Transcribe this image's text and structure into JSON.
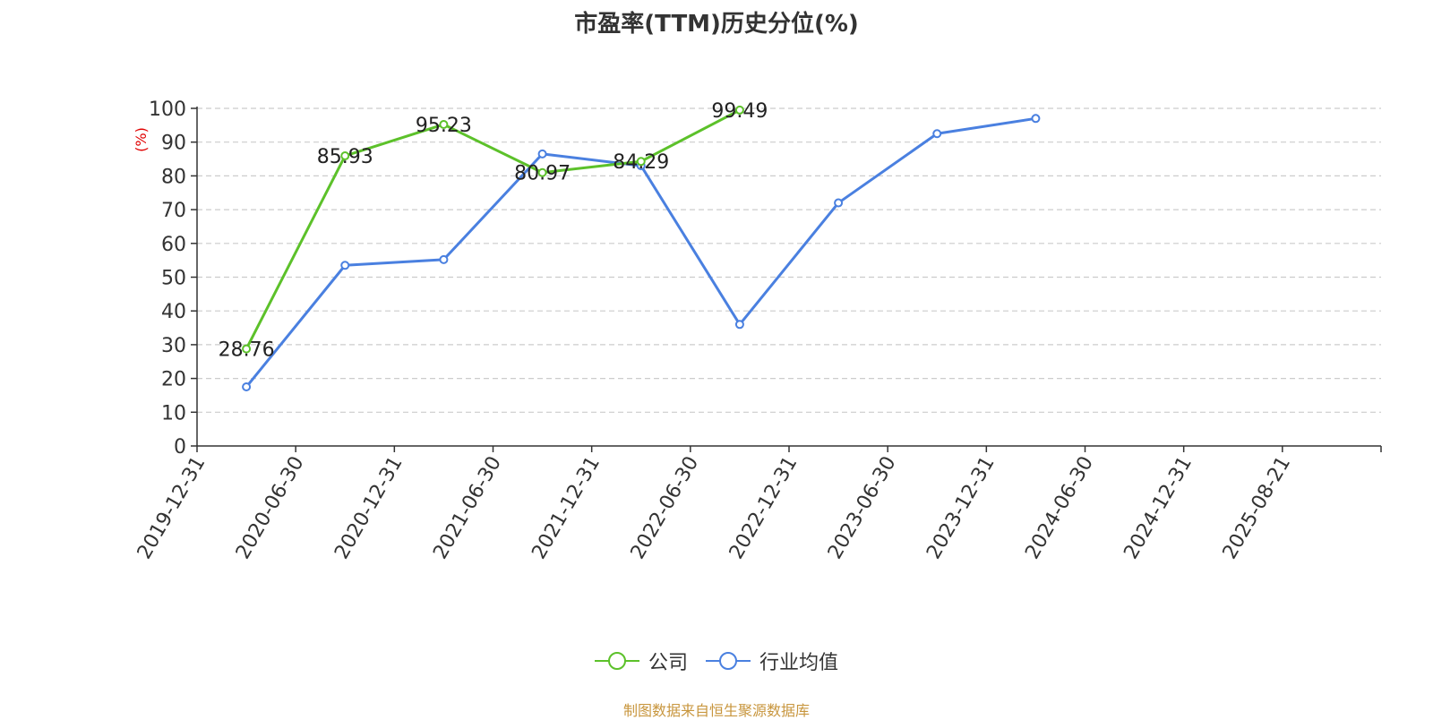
{
  "title": "市盈率(TTM)历史分位(%)",
  "source": "制图数据来自恒生聚源数据库",
  "colors": {
    "company": "#5cc12a",
    "industry": "#4a80e0",
    "grid": "#cccccc",
    "axis": "#333333",
    "unit": "#e00000"
  },
  "chart_data": {
    "type": "line",
    "title": "市盈率(TTM)历史分位(%)",
    "ylabel": "(%)",
    "xlabel": "",
    "ylim": [
      0,
      100
    ],
    "y_ticks": [
      0,
      10,
      20,
      30,
      40,
      50,
      60,
      70,
      80,
      90,
      100
    ],
    "grid": true,
    "legend_position": "bottom-center",
    "categories": [
      "2019-12-31",
      "2020-06-30",
      "2020-12-31",
      "2021-06-30",
      "2021-12-31",
      "2022-06-30",
      "2022-12-31",
      "2023-06-30",
      "2023-12-31",
      "2024-06-30",
      "2024-12-31",
      "2025-08-21"
    ],
    "series": [
      {
        "name": "公司",
        "color": "#5cc12a",
        "values": [
          28.76,
          85.93,
          95.23,
          80.97,
          84.29,
          99.49,
          null,
          null,
          null,
          null,
          null,
          null
        ],
        "labels": [
          "28.76",
          "85.93",
          "95.23",
          "80.97",
          "84.29",
          "99.49",
          "",
          "",
          "",
          "",
          "",
          ""
        ]
      },
      {
        "name": "行业均值",
        "color": "#4a80e0",
        "values": [
          17.5,
          53.5,
          55.2,
          86.5,
          83,
          36,
          72,
          92.5,
          97,
          null,
          null,
          null
        ],
        "labels": []
      }
    ]
  }
}
